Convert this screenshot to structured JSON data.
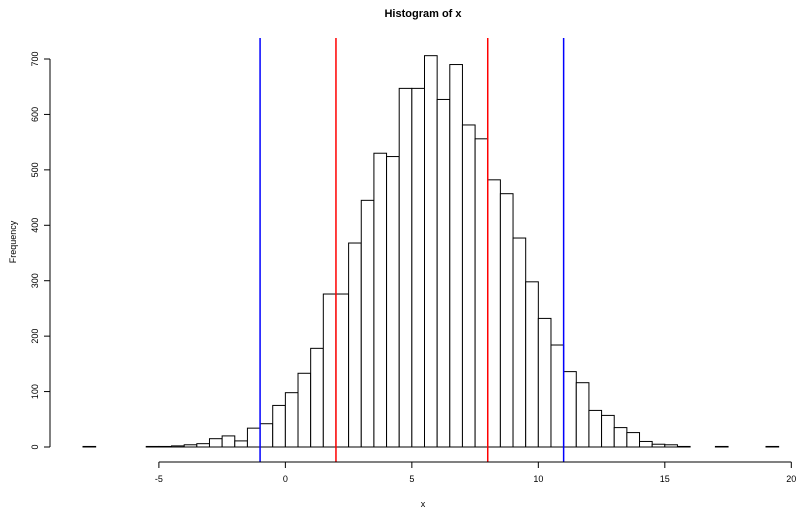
{
  "chart_data": {
    "type": "bar",
    "title": "Histogram of x",
    "xlabel": "x",
    "ylabel": "Frequency",
    "bin_width": 0.5,
    "bin_start": -8,
    "xlim": [
      -8,
      19
    ],
    "ylim": [
      0,
      700
    ],
    "x_ticks": [
      -5,
      0,
      5,
      10,
      15,
      20
    ],
    "y_ticks": [
      0,
      100,
      200,
      300,
      400,
      500,
      600,
      700
    ],
    "values": [
      1,
      0,
      0,
      0,
      0,
      1,
      1,
      2,
      4,
      6,
      15,
      20,
      11,
      34,
      42,
      75,
      98,
      133,
      178,
      276,
      276,
      368,
      445,
      530,
      524,
      647,
      647,
      706,
      627,
      690,
      581,
      556,
      482,
      457,
      377,
      298,
      232,
      184,
      136,
      116,
      66,
      57,
      35,
      26,
      10,
      5,
      4,
      1,
      0,
      0,
      1,
      0,
      0,
      0,
      1
    ],
    "vlines": [
      {
        "x": 2,
        "color": "#ff0000"
      },
      {
        "x": 8,
        "color": "#ff0000"
      },
      {
        "x": -1,
        "color": "#0000ff"
      },
      {
        "x": 11,
        "color": "#0000ff"
      }
    ],
    "grid": false,
    "bar_fill": "#ffffff",
    "bar_stroke": "#000000"
  }
}
